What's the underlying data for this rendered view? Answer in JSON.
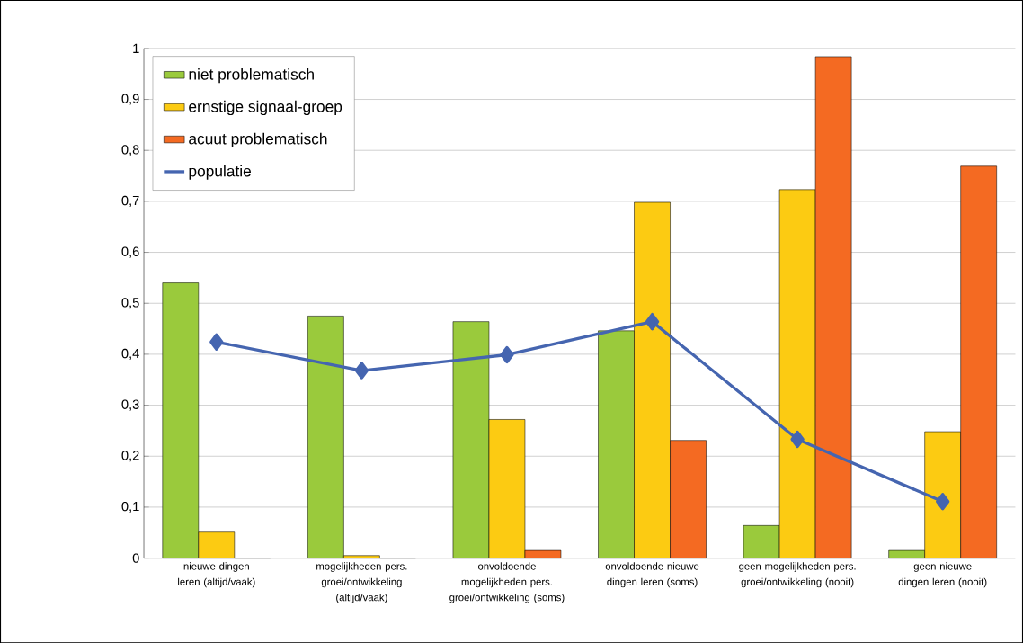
{
  "chart_data": {
    "type": "bar",
    "categories": [
      "nieuwe dingen leren (altijd/vaak)",
      "mogelijkheden pers. groei/ontwikkeling (altijd/vaak)",
      "onvoldoende mogelijkheden pers. groei/ontwikkeling (soms)",
      "onvoldoende nieuwe dingen leren (soms)",
      "geen mogelijkheden pers. groei/ontwikkeling (nooit)",
      "geen nieuwe dingen leren (nooit)"
    ],
    "series": [
      {
        "name": "niet problematisch",
        "color": "#9aca3c",
        "values": [
          0.54,
          0.475,
          0.464,
          0.446,
          0.064,
          0.015
        ]
      },
      {
        "name": "ernstige signaal-groep",
        "color": "#fccb12",
        "values": [
          0.051,
          0.005,
          0.272,
          0.698,
          0.723,
          0.248
        ]
      },
      {
        "name": "acuut problematisch",
        "color": "#f46a22",
        "values": [
          0,
          0,
          0.015,
          0.231,
          0.984,
          0.769
        ]
      },
      {
        "name": "populatie",
        "type": "line",
        "color": "#4565b0",
        "marker": "diamond",
        "values": [
          0.424,
          0.368,
          0.399,
          0.464,
          0.233,
          0.111
        ]
      }
    ],
    "ylim": [
      0,
      1
    ],
    "yticks": [
      0,
      {
        "value": 0.1,
        "label": "0,1"
      },
      {
        "value": 0.2,
        "label": "0,2"
      },
      {
        "value": 0.3,
        "label": "0,3"
      },
      {
        "value": 0.4,
        "label": "0,4"
      },
      {
        "value": 0.5,
        "label": "0,5"
      },
      {
        "value": 0.6,
        "label": "0,6"
      },
      {
        "value": 0.7,
        "label": "0,7"
      },
      {
        "value": 0.8,
        "label": "0,8"
      },
      {
        "value": 0.9,
        "label": "0,9"
      },
      1
    ],
    "grid": "y",
    "legend": "top left"
  }
}
